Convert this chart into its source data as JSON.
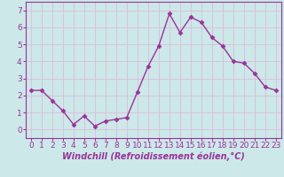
{
  "x": [
    0,
    1,
    2,
    3,
    4,
    5,
    6,
    7,
    8,
    9,
    10,
    11,
    12,
    13,
    14,
    15,
    16,
    17,
    18,
    19,
    20,
    21,
    22,
    23
  ],
  "y": [
    2.3,
    2.3,
    1.7,
    1.1,
    0.3,
    0.8,
    0.2,
    0.5,
    0.6,
    0.7,
    2.2,
    3.7,
    4.9,
    6.8,
    5.7,
    6.6,
    6.3,
    5.4,
    4.9,
    4.0,
    3.9,
    3.3,
    2.5,
    2.3
  ],
  "line_color": "#993399",
  "marker": "D",
  "marker_size": 2.5,
  "bg_color": "#cce8e8",
  "grid_color": "#ddbbdd",
  "xlabel": "Windchill (Refroidissement éolien,°C)",
  "ylim": [
    -0.5,
    7.5
  ],
  "xlim": [
    -0.5,
    23.5
  ],
  "yticks": [
    0,
    1,
    2,
    3,
    4,
    5,
    6,
    7
  ],
  "xticks": [
    0,
    1,
    2,
    3,
    4,
    5,
    6,
    7,
    8,
    9,
    10,
    11,
    12,
    13,
    14,
    15,
    16,
    17,
    18,
    19,
    20,
    21,
    22,
    23
  ],
  "tick_fontsize": 6.5,
  "xlabel_fontsize": 7,
  "line_width": 1.0
}
